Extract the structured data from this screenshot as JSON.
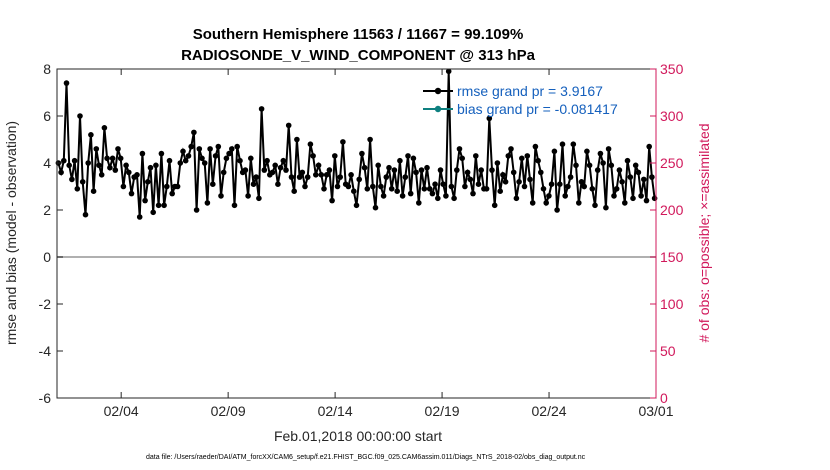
{
  "chart_data": {
    "type": "line",
    "title_line1": "Southern Hemisphere 11563 / 11667 = 99.109%",
    "title_line2": "RADIOSONDE_V_WIND_COMPONENT @ 313 hPa",
    "xlabel": "Feb.01,2018 00:00:00 start",
    "ylabel_left": "rmse and bias (model - observation)",
    "ylabel_right": "# of obs: o=possible; ×=assimilated",
    "footnote": "data file: /Users/raeder/DAI/ATM_forcXX/CAM6_setup/f.e21.FHIST_BGC.f09_025.CAM6assim.011/Diags_NTrS_2018-02/obs_diag_output.nc",
    "xlim": [
      0,
      28
    ],
    "ylim_left": [
      -6,
      8
    ],
    "ylim_right": [
      0,
      350
    ],
    "x_ticks": [
      3,
      8,
      13,
      18,
      23,
      28
    ],
    "x_tick_labels": [
      "02/04",
      "02/09",
      "02/14",
      "02/19",
      "02/24",
      "03/01"
    ],
    "y_left_ticks": [
      -6,
      -4,
      -2,
      0,
      2,
      4,
      6,
      8
    ],
    "y_left_tick_labels": [
      "-6",
      "-4",
      "-2",
      "0",
      "2",
      "4",
      "6",
      "8"
    ],
    "y_right_ticks": [
      0,
      50,
      100,
      150,
      200,
      250,
      300,
      350
    ],
    "y_right_tick_labels": [
      "0",
      "50",
      "100",
      "150",
      "200",
      "250",
      "300",
      "350"
    ],
    "zero_line": 0,
    "colors": {
      "rmse": "#000000",
      "bias": "#0e8080",
      "obs": "#d1185b",
      "zero": "#b0b0b0",
      "legend_text": "#1560bd"
    },
    "legend": [
      {
        "name": "rmse grand pr = 3.9167",
        "color": "#000000"
      },
      {
        "name": "bias grand pr = -0.081417",
        "color": "#0e8080"
      }
    ],
    "series": [
      {
        "name": "rmse",
        "axis": "left",
        "values": [
          4.0,
          3.6,
          4.1,
          7.4,
          3.9,
          3.3,
          4.1,
          2.9,
          6.0,
          3.2,
          1.8,
          4.0,
          5.2,
          2.8,
          4.6,
          3.9,
          3.5,
          5.5,
          4.2,
          3.8,
          4.2,
          3.7,
          4.6,
          4.2,
          3.0,
          3.9,
          3.6,
          2.7,
          3.4,
          3.5,
          1.7,
          4.4,
          2.4,
          3.2,
          3.8,
          1.9,
          3.9,
          2.2,
          4.4,
          2.2,
          3.0,
          4.1,
          2.7,
          3.0,
          3.0,
          4.0,
          4.5,
          4.1,
          4.3,
          4.7,
          5.3,
          2.0,
          4.6,
          4.2,
          4.0,
          2.3,
          4.6,
          3.1,
          4.3,
          4.7,
          2.6,
          3.6,
          4.2,
          4.4,
          4.6,
          2.2,
          4.7,
          4.1,
          3.6,
          3.7,
          2.6,
          4.2,
          3.1,
          3.4,
          2.5,
          6.3,
          3.7,
          4.1,
          3.5,
          3.6,
          3.9,
          3.1,
          3.8,
          4.1,
          3.7,
          5.6,
          3.4,
          2.8,
          5.0,
          3.4,
          3.6,
          3.0,
          3.4,
          4.8,
          4.3,
          3.5,
          3.9,
          3.5,
          2.9,
          3.5,
          3.7,
          2.4,
          4.3,
          3.0,
          3.4,
          4.9,
          3.1,
          3.0,
          3.5,
          2.8,
          2.2,
          3.3,
          4.4,
          3.8,
          2.9,
          5.0,
          3.0,
          2.1,
          3.9,
          3.0,
          2.6,
          3.4,
          3.8,
          2.9,
          3.7,
          2.8,
          4.1,
          2.6,
          3.4,
          4.3,
          2.7,
          4.2,
          3.6,
          2.3,
          3.7,
          2.9,
          3.8,
          2.9,
          2.7,
          3.1,
          2.5,
          3.7,
          3.1,
          2.6,
          7.9,
          3.0,
          2.5,
          3.7,
          4.6,
          4.2,
          3.0,
          3.6,
          3.3,
          2.7,
          4.3,
          3.1,
          3.7,
          2.9,
          2.9,
          5.9,
          3.7,
          2.2,
          4.0,
          2.8,
          3.5,
          3.2,
          4.3,
          4.6,
          3.6,
          2.5,
          3.2,
          4.2,
          3.0,
          4.3,
          3.3,
          2.3,
          4.7,
          4.1,
          3.6,
          2.9,
          2.3,
          2.6,
          3.1,
          4.5,
          2.0,
          3.1,
          4.8,
          2.6,
          3.0,
          3.4,
          4.8,
          3.9,
          2.3,
          3.2,
          3.0,
          4.5,
          3.9,
          2.9,
          2.2,
          3.7,
          4.4,
          4.0,
          2.1,
          4.6,
          3.9,
          2.6,
          2.9,
          3.7,
          3.2,
          2.3,
          4.1,
          3.4,
          2.5,
          3.9,
          3.6,
          2.6,
          3.3,
          2.4,
          4.7,
          3.4,
          2.5
        ]
      }
    ]
  }
}
